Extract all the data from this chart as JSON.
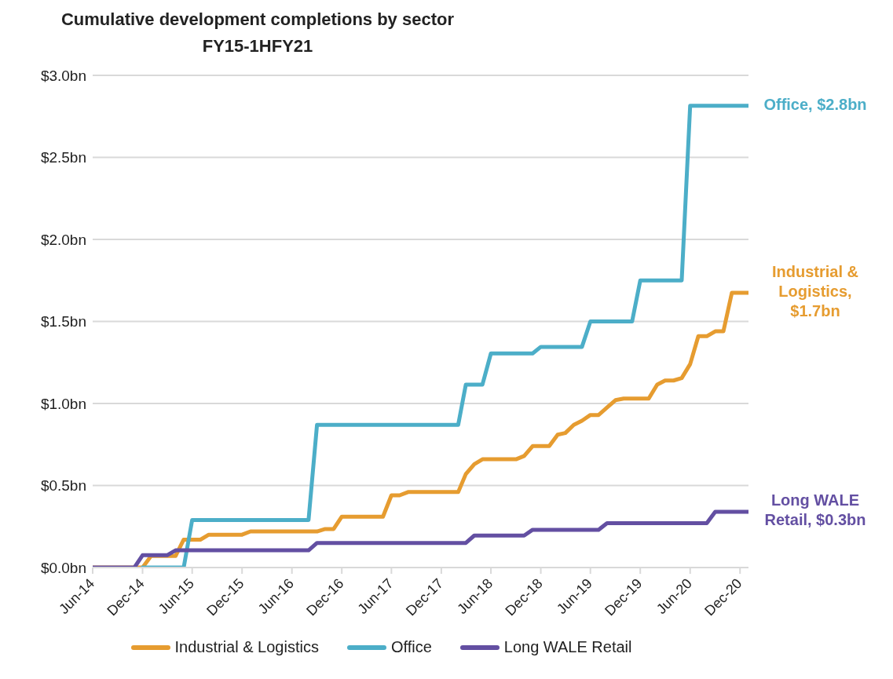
{
  "chart_data": {
    "type": "line",
    "title": "Cumulative development completions by sector",
    "subtitle": "FY15-1HFY21",
    "series": [
      {
        "name": "Industrial & Logistics",
        "color": "#e69c30",
        "x": [
          "2014-06",
          "2014-12",
          "2015-01",
          "2015-04",
          "2015-05",
          "2015-07",
          "2015-08",
          "2015-12",
          "2016-01",
          "2016-09",
          "2016-10",
          "2016-11",
          "2016-12",
          "2017-05",
          "2017-06",
          "2017-07",
          "2017-08",
          "2018-02",
          "2018-03",
          "2018-04",
          "2018-05",
          "2018-09",
          "2018-10",
          "2018-11",
          "2019-01",
          "2019-02",
          "2019-03",
          "2019-04",
          "2019-05",
          "2019-06",
          "2019-07",
          "2019-08",
          "2019-09",
          "2019-10",
          "2020-01",
          "2020-02",
          "2020-03",
          "2020-04",
          "2020-05",
          "2020-06",
          "2020-07",
          "2020-08",
          "2020-09",
          "2020-10",
          "2020-11",
          "2021-01"
        ],
        "values": [
          0,
          0,
          0.07,
          0.07,
          0.17,
          0.17,
          0.2,
          0.2,
          0.22,
          0.22,
          0.235,
          0.235,
          0.31,
          0.31,
          0.44,
          0.44,
          0.46,
          0.46,
          0.57,
          0.63,
          0.66,
          0.66,
          0.68,
          0.74,
          0.74,
          0.81,
          0.82,
          0.87,
          0.895,
          0.93,
          0.93,
          0.975,
          1.02,
          1.03,
          1.03,
          1.115,
          1.14,
          1.14,
          1.155,
          1.24,
          1.41,
          1.41,
          1.44,
          1.44,
          1.675,
          1.675
        ]
      },
      {
        "name": "Office",
        "color": "#4caec8",
        "x": [
          "2014-12",
          "2015-05",
          "2015-06",
          "2016-08",
          "2016-09",
          "2018-02",
          "2018-03",
          "2018-05",
          "2018-06",
          "2018-11",
          "2018-12",
          "2019-05",
          "2019-06",
          "2019-11",
          "2019-12",
          "2020-05",
          "2020-06",
          "2021-01"
        ],
        "values": [
          0,
          0,
          0.29,
          0.29,
          0.87,
          0.87,
          1.115,
          1.115,
          1.305,
          1.305,
          1.345,
          1.345,
          1.5,
          1.5,
          1.75,
          1.75,
          2.815,
          2.815
        ]
      },
      {
        "name": "Long WALE Retail",
        "color": "#634fa2",
        "x": [
          "2014-06",
          "2014-11",
          "2014-12",
          "2015-03",
          "2015-04",
          "2016-08",
          "2016-09",
          "2018-03",
          "2018-04",
          "2018-10",
          "2018-11",
          "2019-07",
          "2019-08",
          "2020-08",
          "2020-09",
          "2021-01"
        ],
        "values": [
          0,
          0,
          0.075,
          0.075,
          0.105,
          0.105,
          0.15,
          0.15,
          0.195,
          0.195,
          0.23,
          0.23,
          0.27,
          0.27,
          0.34,
          0.34
        ]
      }
    ],
    "annotations": [
      {
        "text": "Industrial & Logistics, $1.7bn",
        "x": "2021-01",
        "y": 1.675
      },
      {
        "text": "Office, $2.8bn",
        "x": "2021-01",
        "y": 2.815
      },
      {
        "text": "Long WALE Retail, $0.3bn",
        "x": "2021-01",
        "y": 0.34
      }
    ],
    "xlim": [
      "2014-06",
      "2021-01"
    ],
    "xticks": [
      {
        "value": "2014-06",
        "label": "Jun-14"
      },
      {
        "value": "2014-12",
        "label": "Dec-14"
      },
      {
        "value": "2015-06",
        "label": "Jun-15"
      },
      {
        "value": "2015-12",
        "label": "Dec-15"
      },
      {
        "value": "2016-06",
        "label": "Jun-16"
      },
      {
        "value": "2016-12",
        "label": "Dec-16"
      },
      {
        "value": "2017-06",
        "label": "Jun-17"
      },
      {
        "value": "2017-12",
        "label": "Dec-17"
      },
      {
        "value": "2018-06",
        "label": "Jun-18"
      },
      {
        "value": "2018-12",
        "label": "Dec-18"
      },
      {
        "value": "2019-06",
        "label": "Jun-19"
      },
      {
        "value": "2019-12",
        "label": "Dec-19"
      },
      {
        "value": "2020-06",
        "label": "Jun-20"
      },
      {
        "value": "2020-12",
        "label": "Dec-20"
      }
    ],
    "ylim": [
      0,
      3
    ],
    "yticks": [
      {
        "value": 0,
        "label": "$0.0bn"
      },
      {
        "value": 0.5,
        "label": "$0.5bn"
      },
      {
        "value": 1,
        "label": "$1.0bn"
      },
      {
        "value": 1.5,
        "label": "$1.5bn"
      },
      {
        "value": 2,
        "label": "$2.0bn"
      },
      {
        "value": 2.5,
        "label": "$2.5bn"
      },
      {
        "value": 3,
        "label": "$3.0bn"
      }
    ],
    "grid": "y",
    "legend": "bottom",
    "marker": "none",
    "line_style": "solid"
  }
}
